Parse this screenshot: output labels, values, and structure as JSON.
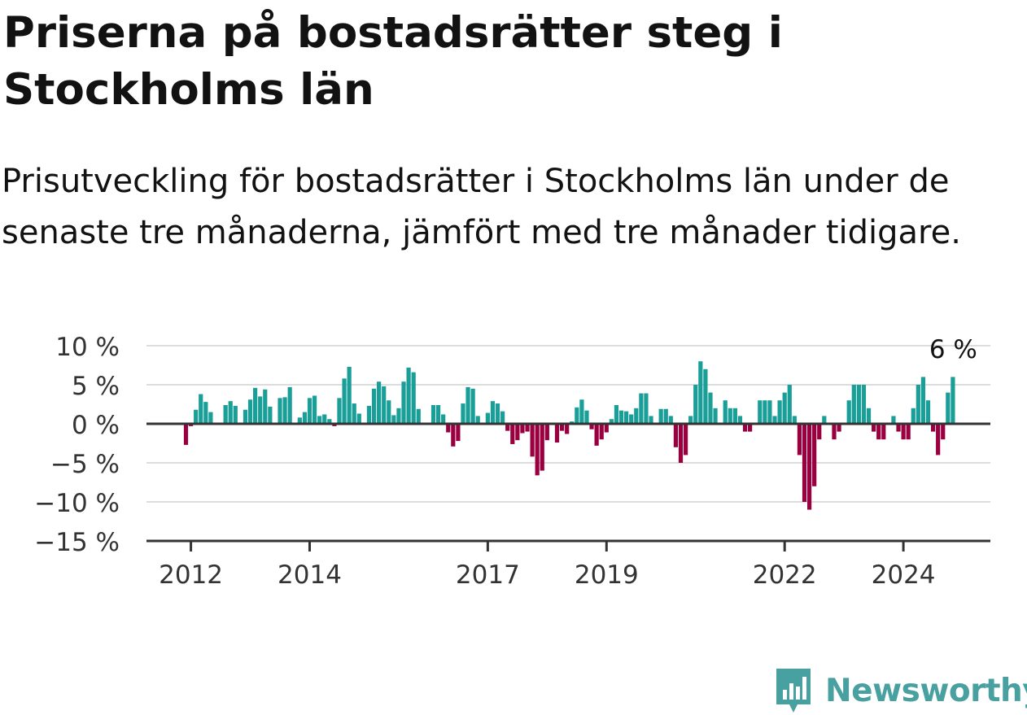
{
  "title": "Priserna på bostadsrätter steg i Stockholms län",
  "subtitle": "Prisutveckling för bostadsrätter i Stockholms län under de senaste tre månaderna, jämfört med tre månader tidigare.",
  "logo": {
    "icon": "newsworthy-logo-icon",
    "text": "Newsworthy"
  },
  "colors": {
    "positive": "#1a9e98",
    "negative": "#9a0040",
    "grid": "#dcdcdc",
    "axis": "#333333",
    "logo": "#48a0a0"
  },
  "chart_data": {
    "type": "bar",
    "x_start": "2011-12",
    "x_tick_labels": [
      "2012",
      "2014",
      "2017",
      "2019",
      "2022",
      "2024"
    ],
    "y_tick_labels": [
      "10 %",
      "5 %",
      "0 %",
      "−5 %",
      "−10 %",
      "−15 %"
    ],
    "y_ticks": [
      10,
      5,
      0,
      -5,
      -10,
      -15
    ],
    "ylim": [
      -15,
      10
    ],
    "unit": "%",
    "annotation": "6 %",
    "grid": true,
    "values": [
      -2.7,
      -0.3,
      1.8,
      3.8,
      2.8,
      1.5,
      0,
      0,
      2.4,
      2.9,
      2.3,
      0,
      1.8,
      3.1,
      4.6,
      3.5,
      4.4,
      2.2,
      0,
      3.3,
      3.4,
      4.7,
      0,
      0.8,
      1.5,
      3.3,
      3.6,
      1.0,
      1.2,
      0.6,
      -0.3,
      3.3,
      5.8,
      7.3,
      2.6,
      1.3,
      0,
      2.3,
      4.5,
      5.4,
      4.8,
      3.0,
      1.1,
      2.0,
      5.4,
      7.2,
      6.6,
      1.9,
      0,
      0,
      2.4,
      2.4,
      1.2,
      -1.1,
      -2.9,
      -2.2,
      2.6,
      4.7,
      4.5,
      1.0,
      0,
      1.4,
      2.9,
      2.6,
      1.6,
      -0.9,
      -2.6,
      -2.1,
      -1.2,
      -1.0,
      -4.2,
      -6.6,
      -6.0,
      -2.1,
      0,
      -2.4,
      -0.9,
      -1.3,
      0.3,
      2.1,
      3.1,
      1.7,
      -0.7,
      -2.8,
      -2.0,
      -1.1,
      0.6,
      2.4,
      1.7,
      1.6,
      1.2,
      2.0,
      3.9,
      3.9,
      1.0,
      0,
      1.9,
      1.9,
      1.0,
      -3.0,
      -5.0,
      -4.0,
      1.0,
      5.0,
      8.0,
      7.0,
      4.0,
      2.0,
      0,
      3.0,
      2.0,
      2.0,
      1.0,
      -1.0,
      -1.0,
      0,
      3.0,
      3.0,
      3.0,
      1.0,
      3.0,
      4.0,
      5.0,
      1.0,
      -4.0,
      -10.0,
      -11.0,
      -8.0,
      -2.0,
      1.0,
      0,
      -2.0,
      -1.0,
      0,
      3.0,
      5.0,
      5.0,
      5.0,
      2.0,
      -1.0,
      -2.0,
      -2.0,
      0,
      1.0,
      -1.0,
      -2.0,
      -2.0,
      2.0,
      5.0,
      6.0,
      3.0,
      -1.0,
      -4.0,
      -2.0,
      4.0,
      6.0
    ]
  }
}
